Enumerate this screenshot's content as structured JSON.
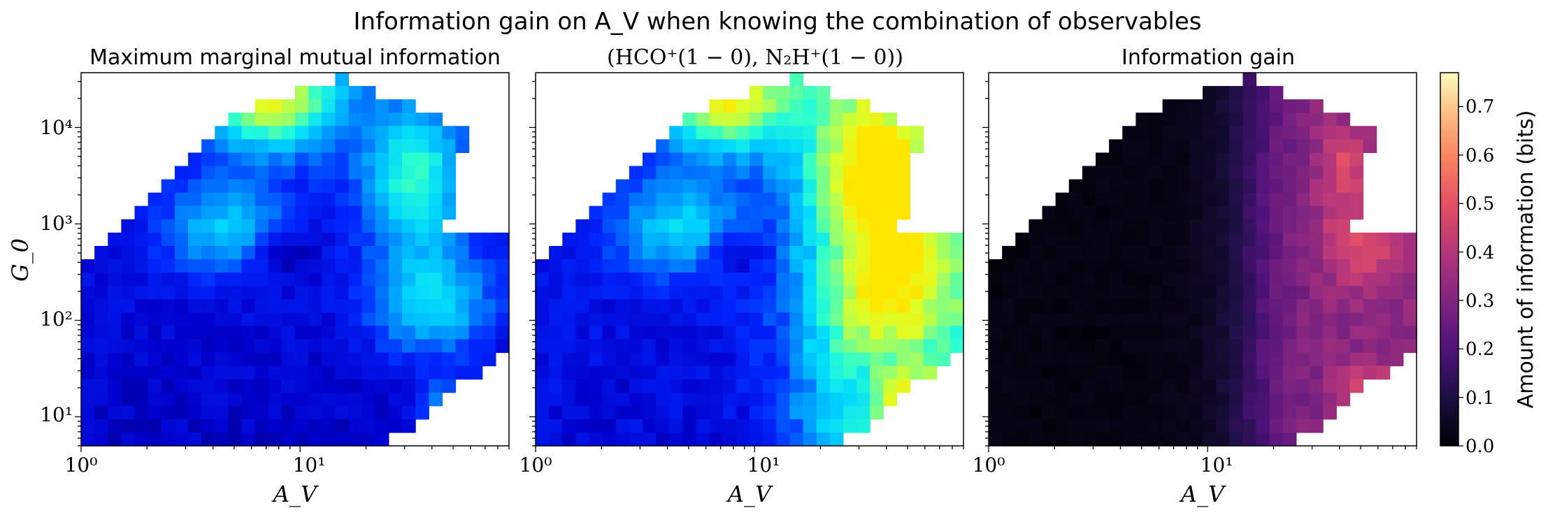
{
  "figure_title": "Information gain on A_V when knowing the combination of observables",
  "panels": [
    {
      "title": "Maximum marginal mutual information",
      "colormap": "jet-blue"
    },
    {
      "title": "(HCO⁺(1 − 0), N₂H⁺(1 − 0))",
      "colormap": "jet-blue"
    },
    {
      "title": "Information gain",
      "colormap": "magma"
    }
  ],
  "x_axis": {
    "label": "A_V",
    "range": [
      1,
      90
    ],
    "scale": "log",
    "tick_labels": [
      "10⁰",
      "10¹"
    ]
  },
  "y_axis": {
    "label": "G_0",
    "range": [
      5,
      37000
    ],
    "scale": "log",
    "tick_labels": [
      "10¹",
      "10²",
      "10³",
      "10⁴"
    ]
  },
  "colorbar": {
    "label": "Amount of information (bits)",
    "range": [
      0.0,
      0.77
    ],
    "tick_labels": [
      "0.0",
      "0.1",
      "0.2",
      "0.3",
      "0.4",
      "0.5",
      "0.6",
      "0.7"
    ]
  },
  "chart_data": {
    "type": "heatmap",
    "title": "Information gain on A_V when knowing the combination of observables",
    "xlabel": "A_V",
    "ylabel": "G_0",
    "xscale": "log",
    "yscale": "log",
    "xlim": [
      1,
      90
    ],
    "ylim": [
      5,
      37000
    ],
    "grid_cols": 32,
    "grid_rows": 28,
    "value_range": [
      0.0,
      0.77
    ],
    "panels": [
      {
        "name": "Maximum marginal mutual information",
        "description": "Mostly 0.05-0.2 bits at low A_V and low G_0; peaks ~0.6 near A_V~8, G_0~2e4; ~0.35-0.45 near A_V 20-50"
      },
      {
        "name": "(HCO+(1-0), N2H+(1-0))",
        "description": "Same as left at A_V<15; rises to 0.5-0.65 for A_V>20 across all G_0"
      },
      {
        "name": "Information gain",
        "description": "Near 0 for A_V<15; 0.2-0.45 for A_V>20; maxima ~0.5 near A_V~50, G_0~400 and G_0~15"
      }
    ]
  }
}
